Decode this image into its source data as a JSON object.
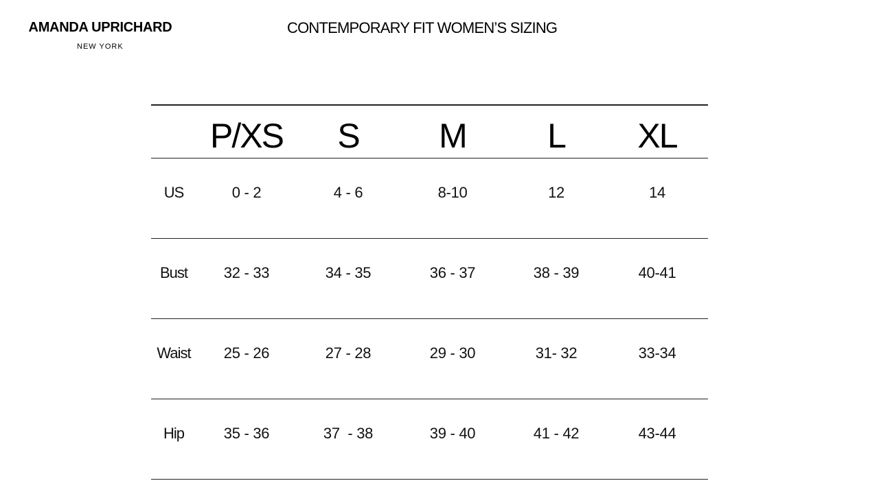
{
  "brand": {
    "name": "AMANDA UPRICHARD",
    "location": "NEW YORK"
  },
  "title": "CONTEMPORARY FIT WOMEN’S SIZING",
  "table": {
    "sizes": [
      "P/XS",
      "S",
      "M",
      "L",
      "XL"
    ],
    "rows": [
      {
        "label": "US",
        "values": [
          "0 - 2",
          "4 - 6",
          "8-10",
          "12",
          "14"
        ]
      },
      {
        "label": "Bust",
        "values": [
          "32 - 33",
          "34 - 35",
          "36 - 37",
          "38 - 39",
          "40-41"
        ]
      },
      {
        "label": "Waist",
        "values": [
          "25 - 26",
          "27 - 28",
          "29 - 30",
          "31- 32",
          "33-34"
        ]
      },
      {
        "label": "Hip",
        "values": [
          "35 - 36",
          "37  - 38",
          "39 - 40",
          "41 - 42",
          "43-44"
        ]
      }
    ]
  }
}
